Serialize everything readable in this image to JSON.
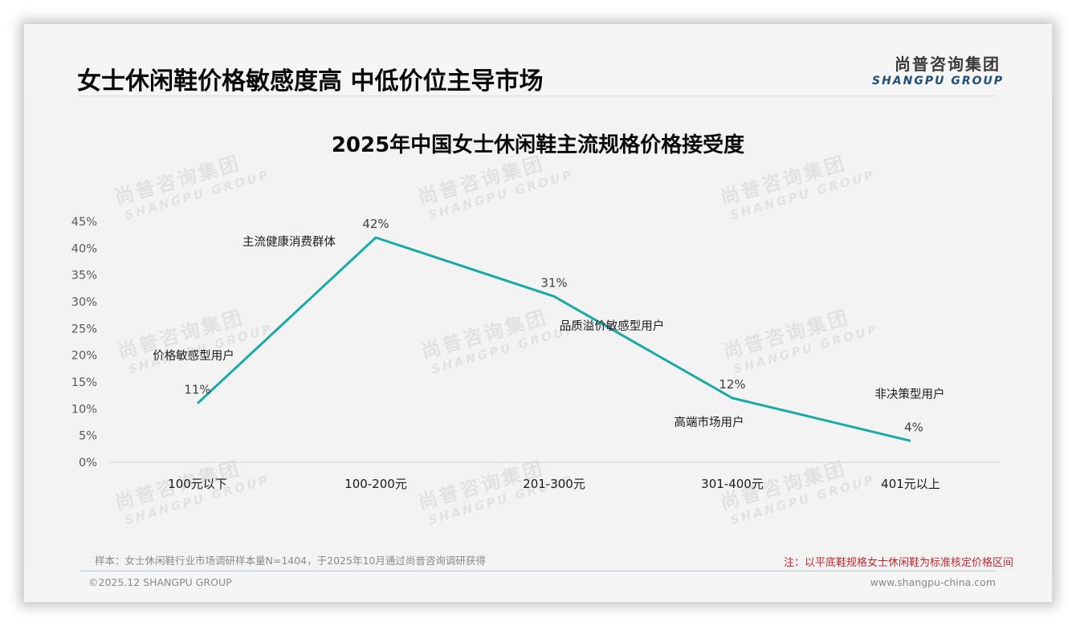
{
  "header": {
    "title": "女士休闲鞋价格敏感度高 中低价位主导市场",
    "logo": {
      "cn": "尚普咨询集团",
      "en": "SHANGPU GROUP"
    }
  },
  "watermark": {
    "cn": "尚普咨询集团",
    "en": "SHANGPU GROUP"
  },
  "chart_data": {
    "type": "line",
    "title": "2025年中国女士休闲鞋主流规格价格接受度",
    "xlabel": "",
    "ylabel": "",
    "categories": [
      "100元以下",
      "100-200元",
      "201-300元",
      "301-400元",
      "401元以上"
    ],
    "series": [
      {
        "name": "价格接受度",
        "values": [
          11,
          42,
          31,
          12,
          4
        ],
        "value_labels": [
          "11%",
          "42%",
          "31%",
          "12%",
          "4%"
        ],
        "color": "#1aaaa5"
      }
    ],
    "annotations": [
      "价格敏感型用户",
      "主流健康消费群体",
      "品质溢价敏感型用户",
      "高端市场用户",
      "非决策型用户"
    ],
    "yticks": [
      "0%",
      "5%",
      "10%",
      "15%",
      "20%",
      "25%",
      "30%",
      "35%",
      "40%",
      "45%"
    ],
    "ylim": [
      0,
      45
    ],
    "grid": false,
    "legend": "none"
  },
  "footer": {
    "sample": "样本：女士休闲鞋行业市场调研样本量N=1404，于2025年10月通过尚普咨询调研获得",
    "note": "注：以平底鞋规格女士休闲鞋为标准核定价格区间",
    "copyright": "©2025.12 SHANGPU GROUP",
    "website": "www.shangpu-china.com"
  },
  "colors": {
    "line": "#1aaaa5",
    "note": "#c0282d",
    "logo_en": "#1f4e79",
    "background": "#f3f3f3"
  }
}
